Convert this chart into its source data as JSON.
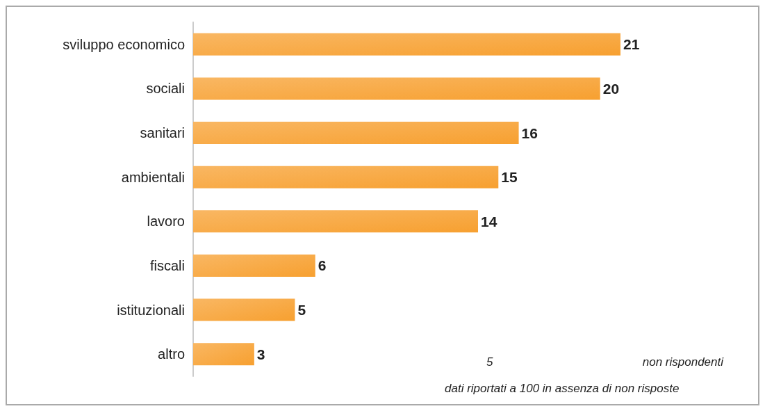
{
  "chart_data": {
    "type": "bar",
    "orientation": "horizontal",
    "categories": [
      "sviluppo economico",
      "sociali",
      "sanitari",
      "ambientali",
      "lavoro",
      "fiscali",
      "istituzionali",
      "altro"
    ],
    "values": [
      21,
      20,
      16,
      15,
      14,
      6,
      5,
      3
    ],
    "color": "#f7a030",
    "data_labels": true,
    "grid": false,
    "annotations": [
      "5",
      "non rispondenti",
      "dati riportati a 100 in assenza di non risposte"
    ]
  }
}
